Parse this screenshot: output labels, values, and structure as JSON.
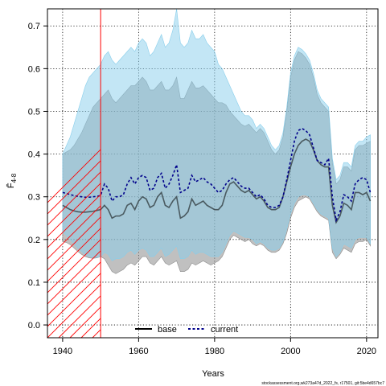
{
  "chart_data": {
    "type": "line",
    "title": "",
    "xlabel": "Years",
    "ylabel": "F̄",
    "ylabel_sub": "4-8",
    "xlim": [
      1936,
      2023
    ],
    "ylim": [
      -0.03,
      0.74
    ],
    "x_ticks": [
      1940,
      1960,
      1980,
      2000,
      2020
    ],
    "y_ticks": [
      0.0,
      0.1,
      0.2,
      0.3,
      0.4,
      0.5,
      0.6,
      0.7
    ],
    "y_tick_labels": [
      "0.0",
      "0.1",
      "0.2",
      "0.3",
      "0.4",
      "0.5",
      "0.6",
      "0.7"
    ],
    "grid": true,
    "legend_position": "bottom-center",
    "hatched_region": {
      "x_from": 1936,
      "x_to": 1950,
      "color": "#ff0000"
    },
    "x": [
      1940,
      1941,
      1942,
      1943,
      1944,
      1945,
      1946,
      1947,
      1948,
      1949,
      1950,
      1951,
      1952,
      1953,
      1954,
      1955,
      1956,
      1957,
      1958,
      1959,
      1960,
      1961,
      1962,
      1963,
      1964,
      1965,
      1966,
      1967,
      1968,
      1969,
      1970,
      1971,
      1972,
      1973,
      1974,
      1975,
      1976,
      1977,
      1978,
      1979,
      1980,
      1981,
      1982,
      1983,
      1984,
      1985,
      1986,
      1987,
      1988,
      1989,
      1990,
      1991,
      1992,
      1993,
      1994,
      1995,
      1996,
      1997,
      1998,
      1999,
      2000,
      2001,
      2002,
      2003,
      2004,
      2005,
      2006,
      2007,
      2008,
      2009,
      2010,
      2011,
      2012,
      2013,
      2014,
      2015,
      2016,
      2017,
      2018,
      2019,
      2020,
      2021
    ],
    "series": [
      {
        "name": "base",
        "color": "#000000",
        "band_color": "#8c8c8c",
        "values": [
          0.28,
          0.275,
          0.27,
          0.267,
          0.265,
          0.264,
          0.264,
          0.265,
          0.266,
          0.268,
          0.27,
          0.28,
          0.27,
          0.25,
          0.255,
          0.255,
          0.26,
          0.28,
          0.285,
          0.27,
          0.29,
          0.3,
          0.295,
          0.275,
          0.28,
          0.3,
          0.31,
          0.28,
          0.275,
          0.29,
          0.3,
          0.25,
          0.255,
          0.265,
          0.295,
          0.28,
          0.285,
          0.29,
          0.28,
          0.275,
          0.27,
          0.27,
          0.28,
          0.31,
          0.33,
          0.335,
          0.325,
          0.315,
          0.31,
          0.315,
          0.305,
          0.295,
          0.3,
          0.29,
          0.275,
          0.27,
          0.27,
          0.275,
          0.3,
          0.335,
          0.37,
          0.4,
          0.42,
          0.43,
          0.435,
          0.43,
          0.41,
          0.385,
          0.375,
          0.37,
          0.37,
          0.28,
          0.24,
          0.255,
          0.285,
          0.28,
          0.27,
          0.31,
          0.31,
          0.305,
          0.31,
          0.29
        ],
        "lower": [
          0.195,
          0.193,
          0.188,
          0.18,
          0.172,
          0.165,
          0.16,
          0.157,
          0.156,
          0.157,
          0.16,
          0.155,
          0.14,
          0.125,
          0.12,
          0.125,
          0.13,
          0.14,
          0.145,
          0.14,
          0.15,
          0.16,
          0.16,
          0.145,
          0.14,
          0.15,
          0.16,
          0.145,
          0.14,
          0.145,
          0.15,
          0.125,
          0.125,
          0.13,
          0.145,
          0.14,
          0.145,
          0.15,
          0.145,
          0.14,
          0.145,
          0.15,
          0.16,
          0.18,
          0.2,
          0.21,
          0.205,
          0.2,
          0.195,
          0.2,
          0.19,
          0.185,
          0.19,
          0.185,
          0.175,
          0.17,
          0.17,
          0.175,
          0.19,
          0.215,
          0.25,
          0.275,
          0.29,
          0.295,
          0.3,
          0.295,
          0.28,
          0.265,
          0.255,
          0.25,
          0.245,
          0.17,
          0.155,
          0.165,
          0.18,
          0.175,
          0.17,
          0.19,
          0.195,
          0.195,
          0.2,
          0.185
        ],
        "upper": [
          0.4,
          0.405,
          0.41,
          0.42,
          0.435,
          0.45,
          0.47,
          0.49,
          0.51,
          0.52,
          0.53,
          0.54,
          0.55,
          0.53,
          0.52,
          0.53,
          0.54,
          0.55,
          0.56,
          0.56,
          0.57,
          0.58,
          0.57,
          0.55,
          0.55,
          0.56,
          0.57,
          0.55,
          0.55,
          0.56,
          0.58,
          0.53,
          0.53,
          0.55,
          0.57,
          0.555,
          0.555,
          0.56,
          0.55,
          0.54,
          0.53,
          0.52,
          0.52,
          0.515,
          0.5,
          0.49,
          0.48,
          0.47,
          0.465,
          0.47,
          0.46,
          0.45,
          0.46,
          0.45,
          0.43,
          0.41,
          0.4,
          0.41,
          0.44,
          0.5,
          0.58,
          0.62,
          0.64,
          0.635,
          0.625,
          0.61,
          0.58,
          0.54,
          0.52,
          0.51,
          0.5,
          0.38,
          0.33,
          0.34,
          0.37,
          0.37,
          0.36,
          0.41,
          0.42,
          0.42,
          0.425,
          0.43
        ]
      },
      {
        "name": "current",
        "color": "#00008b",
        "band_color": "#87ceeb",
        "values": [
          0.31,
          0.308,
          0.305,
          0.303,
          0.301,
          0.3,
          0.299,
          0.299,
          0.3,
          0.301,
          0.303,
          0.33,
          0.32,
          0.29,
          0.3,
          0.3,
          0.305,
          0.33,
          0.345,
          0.33,
          0.345,
          0.35,
          0.345,
          0.315,
          0.32,
          0.345,
          0.355,
          0.32,
          0.33,
          0.35,
          0.375,
          0.31,
          0.315,
          0.32,
          0.35,
          0.335,
          0.34,
          0.345,
          0.335,
          0.33,
          0.32,
          0.31,
          0.315,
          0.33,
          0.34,
          0.345,
          0.335,
          0.325,
          0.32,
          0.32,
          0.31,
          0.3,
          0.305,
          0.295,
          0.28,
          0.275,
          0.275,
          0.28,
          0.3,
          0.34,
          0.385,
          0.43,
          0.455,
          0.46,
          0.455,
          0.445,
          0.415,
          0.385,
          0.38,
          0.375,
          0.39,
          0.3,
          0.245,
          0.265,
          0.305,
          0.3,
          0.29,
          0.33,
          0.34,
          0.345,
          0.34,
          0.31
        ],
        "lower": [
          0.218,
          0.21,
          0.2,
          0.19,
          0.18,
          0.172,
          0.165,
          0.16,
          0.158,
          0.158,
          0.16,
          0.17,
          0.165,
          0.15,
          0.155,
          0.155,
          0.16,
          0.17,
          0.175,
          0.165,
          0.175,
          0.18,
          0.175,
          0.16,
          0.16,
          0.17,
          0.18,
          0.16,
          0.165,
          0.175,
          0.185,
          0.155,
          0.155,
          0.16,
          0.175,
          0.165,
          0.17,
          0.17,
          0.165,
          0.16,
          0.16,
          0.16,
          0.17,
          0.19,
          0.21,
          0.22,
          0.215,
          0.21,
          0.205,
          0.205,
          0.2,
          0.19,
          0.195,
          0.19,
          0.18,
          0.175,
          0.175,
          0.18,
          0.195,
          0.225,
          0.26,
          0.285,
          0.3,
          0.305,
          0.305,
          0.3,
          0.285,
          0.27,
          0.26,
          0.255,
          0.25,
          0.18,
          0.16,
          0.17,
          0.19,
          0.185,
          0.18,
          0.2,
          0.205,
          0.205,
          0.205,
          0.19
        ],
        "upper": [
          0.4,
          0.42,
          0.44,
          0.47,
          0.5,
          0.53,
          0.56,
          0.58,
          0.59,
          0.6,
          0.61,
          0.63,
          0.64,
          0.62,
          0.61,
          0.62,
          0.63,
          0.64,
          0.65,
          0.64,
          0.66,
          0.67,
          0.66,
          0.63,
          0.64,
          0.66,
          0.68,
          0.65,
          0.66,
          0.69,
          0.74,
          0.66,
          0.65,
          0.66,
          0.69,
          0.67,
          0.67,
          0.68,
          0.66,
          0.65,
          0.64,
          0.61,
          0.6,
          0.58,
          0.56,
          0.54,
          0.52,
          0.5,
          0.49,
          0.49,
          0.48,
          0.46,
          0.47,
          0.46,
          0.44,
          0.42,
          0.41,
          0.42,
          0.45,
          0.51,
          0.59,
          0.63,
          0.65,
          0.645,
          0.635,
          0.62,
          0.59,
          0.55,
          0.53,
          0.52,
          0.51,
          0.39,
          0.34,
          0.35,
          0.38,
          0.38,
          0.37,
          0.42,
          0.43,
          0.43,
          0.44,
          0.445
        ]
      }
    ]
  },
  "watermark": "stockassessment.org,wk273a47d_2022_fs, r17501, git:5be4d657bc7"
}
